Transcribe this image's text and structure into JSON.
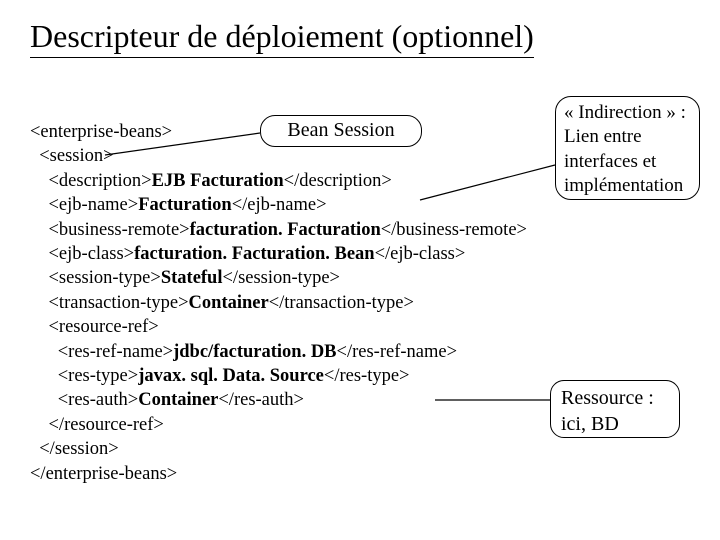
{
  "title": "Descripteur de déploiement (optionnel)",
  "bean_label": "Bean Session",
  "indirection_text": "« Indirection » :\nLien entre\ninterfaces et\nimplémentation",
  "resource_text": "Ressource :\nici, BD",
  "code": {
    "l1": "<enterprise-beans>",
    "l2": "  <session>",
    "l3a": "    <description>",
    "l3b": "EJB Facturation",
    "l3c": "</description>",
    "l4a": "    <ejb-name>",
    "l4b": "Facturation",
    "l4c": "</ejb-name>",
    "l5a": "    <business-remote>",
    "l5b": "facturation. Facturation",
    "l5c": "</business-remote>",
    "l6a": "    <ejb-class>",
    "l6b": "facturation. Facturation. Bean",
    "l6c": "</ejb-class>",
    "l7a": "    <session-type>",
    "l7b": "Stateful",
    "l7c": "</session-type>",
    "l8a": "    <transaction-type>",
    "l8b": "Container",
    "l8c": "</transaction-type>",
    "l9": "    <resource-ref>",
    "l10a": "      <res-ref-name>",
    "l10b": "jdbc/facturation. DB",
    "l10c": "</res-ref-name>",
    "l11a": "      <res-type>",
    "l11b": "javax. sql. Data. Source",
    "l11c": "</res-type>",
    "l12a": "      <res-auth>",
    "l12b": "Container",
    "l12c": "</res-auth>",
    "l13": "    </resource-ref>",
    "l14": "  </session>",
    "l15": "</enterprise-beans>"
  },
  "style": {
    "text_color": "#000000",
    "background": "#ffffff",
    "title_fontsize": 32,
    "code_fontsize": 18.5,
    "bubble_border": "#000000",
    "line_color": "#000000"
  }
}
